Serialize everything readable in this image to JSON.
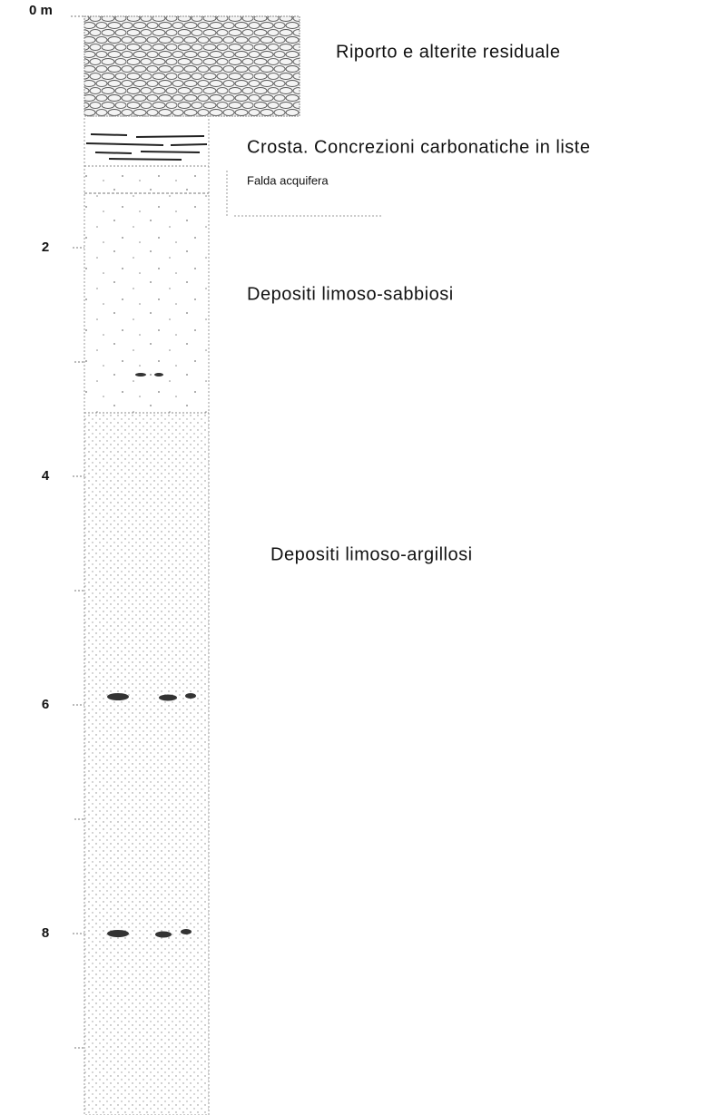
{
  "depth_labels": [
    "0 m",
    "2",
    "4",
    "6",
    "8"
  ],
  "layers": [
    {
      "label": "Riporto e alterite residuale"
    },
    {
      "label": "Crosta. Concrezioni carbonatiche in liste"
    },
    {
      "label": "Depositi limoso-sabbiosi"
    },
    {
      "label": "Depositi limoso-argillosi"
    }
  ],
  "water_table": "Falda acquifera"
}
